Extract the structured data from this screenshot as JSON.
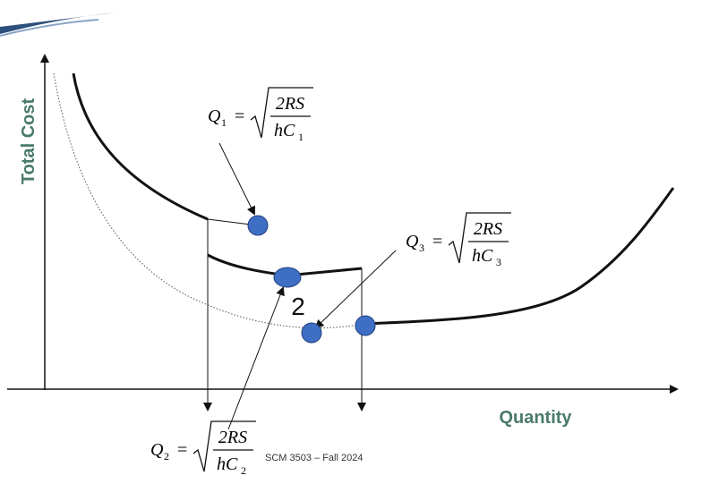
{
  "axis_labels": {
    "y": "Total Cost",
    "x": "Quantity"
  },
  "marker_label": "2",
  "footer": "SCM 3503 – Fall 2024",
  "formulas": [
    {
      "q": "Q",
      "q_sub": "1",
      "equals": "=",
      "num": "2RS",
      "den": "hC",
      "den_sub": "1"
    },
    {
      "q": "Q",
      "q_sub": "2",
      "equals": "=",
      "num": "2RS",
      "den": "hC",
      "den_sub": "2"
    },
    {
      "q": "Q",
      "q_sub": "3",
      "equals": "=",
      "num": "2RS",
      "den": "hC",
      "den_sub": "3"
    }
  ]
}
